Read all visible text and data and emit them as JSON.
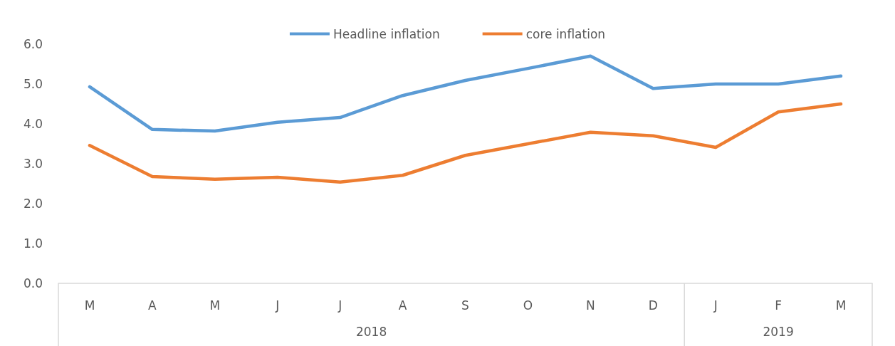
{
  "chart_data": {
    "type": "line",
    "categories": [
      "M",
      "A",
      "M",
      "J",
      "J",
      "A",
      "S",
      "O",
      "N",
      "D",
      "J",
      "F",
      "M"
    ],
    "series": [
      {
        "name": "Headline inflation",
        "color": "#5b9bd5",
        "values": [
          4.93,
          3.86,
          3.82,
          4.04,
          4.16,
          4.71,
          5.09,
          5.39,
          5.7,
          4.89,
          5.0,
          5.0,
          5.2
        ]
      },
      {
        "name": "core inflation",
        "color": "#ed7d31",
        "values": [
          3.46,
          2.68,
          2.61,
          2.66,
          2.54,
          2.71,
          3.21,
          3.5,
          3.79,
          3.7,
          3.41,
          4.3,
          4.5
        ]
      }
    ],
    "ylim": [
      0,
      6
    ],
    "yticks": [
      {
        "value": 0,
        "label": "0.0"
      },
      {
        "value": 1,
        "label": "1.0"
      },
      {
        "value": 2,
        "label": "2.0"
      },
      {
        "value": 3,
        "label": "3.0"
      },
      {
        "value": 4,
        "label": "4.0"
      },
      {
        "value": 5,
        "label": "5.0"
      },
      {
        "value": 6,
        "label": "6.0"
      }
    ],
    "annotations": [
      "2018",
      "2019"
    ],
    "grid": false,
    "legend": "top",
    "marker": "none",
    "line_style": "solid"
  }
}
